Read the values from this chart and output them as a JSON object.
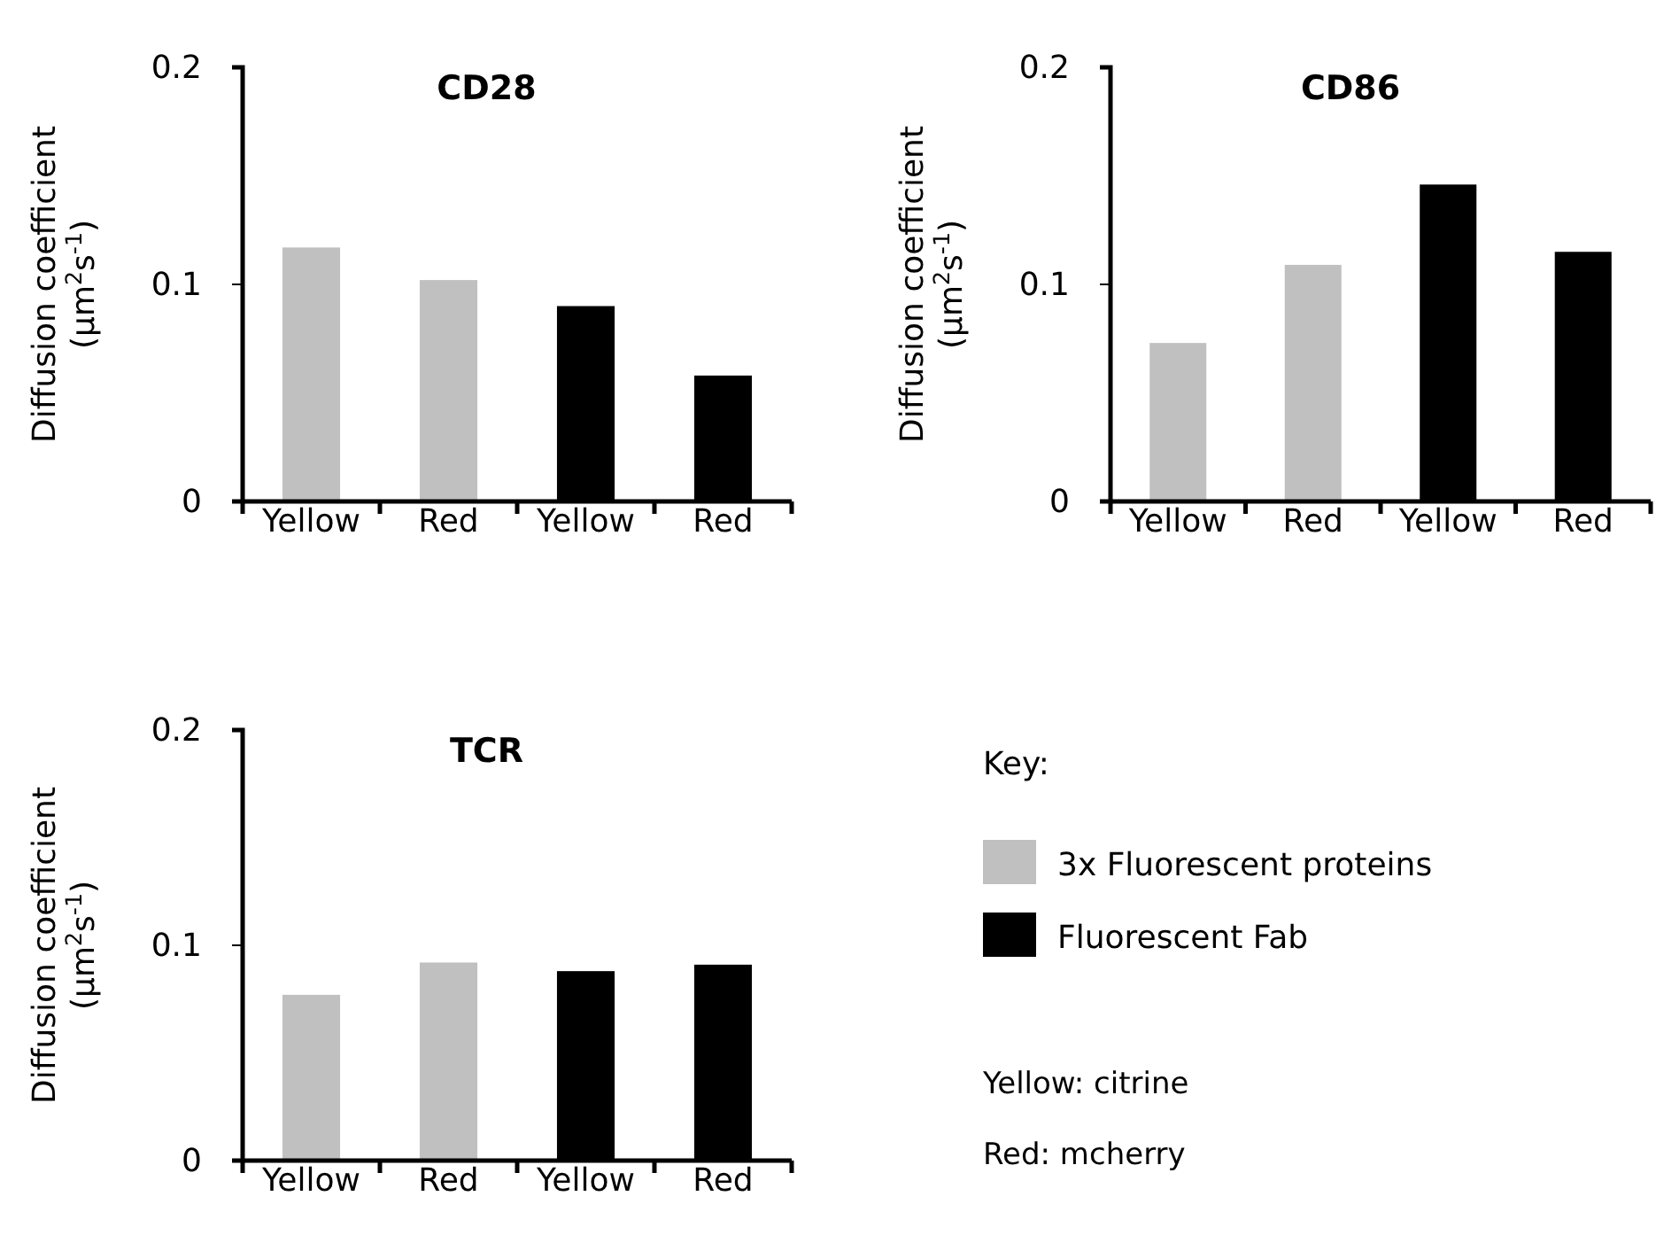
{
  "chart_data": [
    {
      "type": "bar",
      "title": "CD28",
      "ylabel": "Diffusion coefficient (µm$^{2}$s$^{-1}$)",
      "categories": [
        "Yellow",
        "Red",
        "Yellow",
        "Red"
      ],
      "values": [
        0.117,
        0.102,
        0.09,
        0.058
      ],
      "colors": [
        "#c0c0c0",
        "#c0c0c0",
        "#000000",
        "#000000"
      ],
      "ylim": [
        0,
        0.2
      ],
      "yticks": [
        0,
        0.1,
        0.2
      ],
      "grid": false
    },
    {
      "type": "bar",
      "title": "CD86",
      "ylabel": "Diffusion coefficient (µm$^{2}$s$^{-1}$)",
      "categories": [
        "Yellow",
        "Red",
        "Yellow",
        "Red"
      ],
      "values": [
        0.073,
        0.109,
        0.146,
        0.115
      ],
      "colors": [
        "#c0c0c0",
        "#c0c0c0",
        "#000000",
        "#000000"
      ],
      "ylim": [
        0,
        0.2
      ],
      "yticks": [
        0,
        0.1,
        0.2
      ],
      "grid": false
    },
    {
      "type": "bar",
      "title": "TCR",
      "ylabel": "Diffusion coefficient (µm$^{2}$s$^{-1}$)",
      "categories": [
        "Yellow",
        "Red",
        "Yellow",
        "Red"
      ],
      "values": [
        0.077,
        0.092,
        0.088,
        0.091
      ],
      "colors": [
        "#c0c0c0",
        "#c0c0c0",
        "#000000",
        "#000000"
      ],
      "ylim": [
        0,
        0.2
      ],
      "yticks": [
        0,
        0.1,
        0.2
      ],
      "grid": false
    },
    {
      "type": "other",
      "legend_title": "Key:",
      "series": [
        {
          "name": "3x Fluorescent proteins",
          "color": "#c0c0c0"
        },
        {
          "name": "Fluorescent Fab",
          "color": "#000000"
        }
      ],
      "annotations": [
        "Yellow: citrine",
        "Red: mcherry"
      ]
    }
  ]
}
